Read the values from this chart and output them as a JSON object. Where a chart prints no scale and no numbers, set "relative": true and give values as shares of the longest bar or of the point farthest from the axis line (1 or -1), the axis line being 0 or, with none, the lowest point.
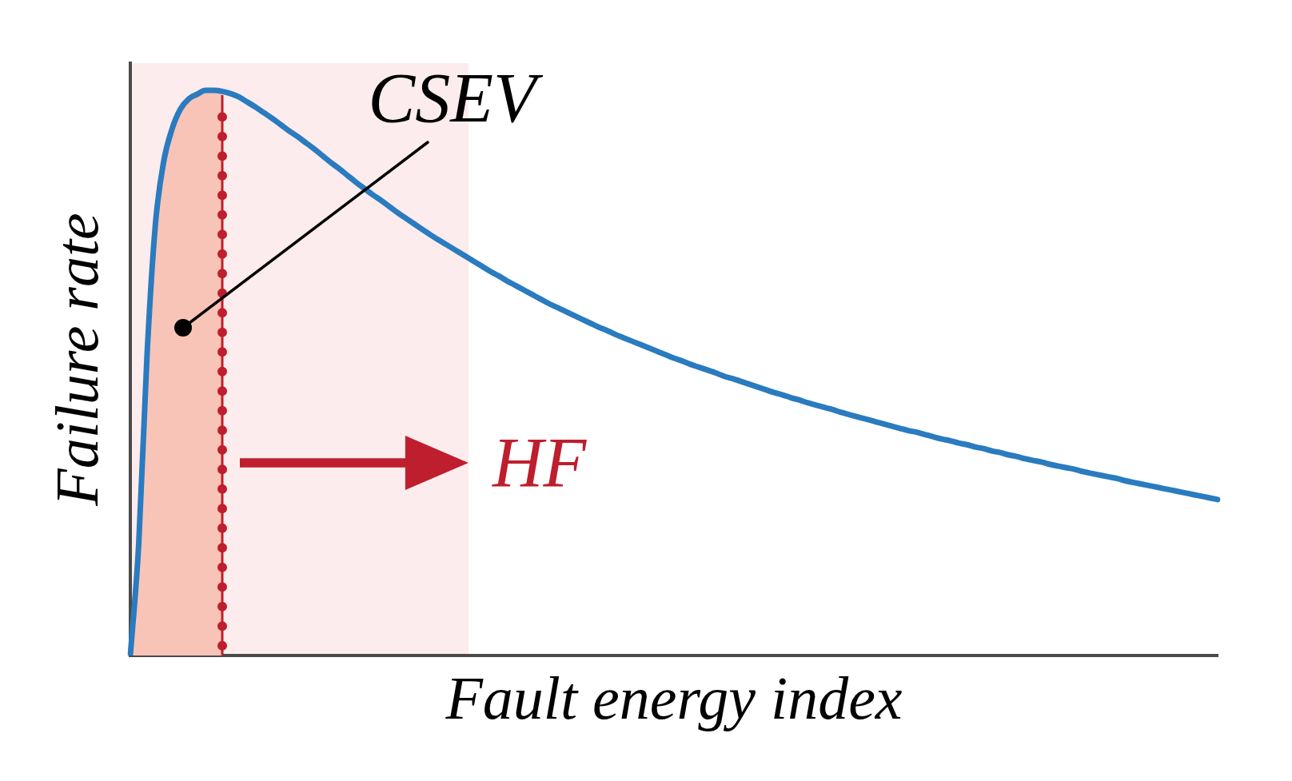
{
  "chart_data": {
    "type": "line",
    "relative": true,
    "xlabel": "Fault energy index",
    "ylabel": "Failure rate",
    "annotations": [
      "HF"
    ],
    "categories": [
      null,
      null,
      null,
      null,
      null,
      null,
      null,
      null,
      null,
      null,
      null,
      null,
      null,
      null,
      null,
      null,
      null,
      null,
      null,
      null,
      null,
      null,
      null,
      null,
      null,
      null,
      null,
      null,
      null,
      null,
      null,
      null,
      null,
      null,
      null,
      null,
      null,
      null,
      null,
      null,
      null,
      null,
      null,
      null,
      null,
      null,
      null,
      null,
      null,
      null,
      null,
      null,
      null,
      null,
      null,
      null,
      null,
      null,
      null,
      null,
      null,
      null,
      null,
      null,
      null,
      null,
      null,
      null,
      null,
      null,
      null,
      null,
      null,
      null,
      null,
      null,
      null,
      null,
      null,
      null,
      null,
      null,
      null,
      null,
      null,
      null,
      null,
      null,
      null,
      null,
      null,
      null,
      null,
      null,
      null,
      null,
      null,
      null,
      null,
      null,
      null,
      null,
      null,
      null,
      null,
      null,
      null,
      null,
      null,
      null,
      null,
      null,
      null,
      null,
      null,
      null,
      null,
      null,
      null,
      null,
      null,
      null,
      null,
      null,
      null,
      null,
      null,
      null,
      null,
      null,
      null
    ],
    "series": [
      {
        "color": "#2a7bbf",
        "values": [
          0,
          0.196,
          0.532,
          0.763,
          0.875,
          0.932,
          0.967,
          0.985,
          0.993,
          1,
          1,
          0.998,
          0.994,
          0.988,
          0.979,
          0.97,
          0.96,
          0.95,
          0.939,
          0.928,
          0.918,
          0.907,
          0.896,
          0.884,
          0.872,
          0.861,
          0.849,
          0.837,
          0.826,
          0.815,
          0.805,
          0.794,
          0.783,
          0.773,
          0.763,
          0.753,
          0.743,
          0.734,
          0.725,
          0.716,
          0.707,
          0.698,
          0.689,
          0.68,
          0.672,
          0.663,
          0.655,
          0.647,
          0.639,
          0.631,
          0.623,
          0.616,
          0.609,
          0.602,
          0.595,
          0.588,
          0.581,
          0.575,
          0.568,
          0.562,
          0.556,
          0.55,
          0.544,
          0.538,
          0.532,
          0.526,
          0.521,
          0.515,
          0.51,
          0.505,
          0.5,
          0.494,
          0.49,
          0.485,
          0.48,
          0.475,
          0.47,
          0.465,
          0.461,
          0.456,
          0.452,
          0.447,
          0.443,
          0.439,
          0.435,
          0.43,
          0.426,
          0.422,
          0.418,
          0.414,
          0.41,
          0.406,
          0.402,
          0.398,
          0.395,
          0.391,
          0.387,
          0.383,
          0.38,
          0.376,
          0.373,
          0.369,
          0.366,
          0.362,
          0.359,
          0.355,
          0.352,
          0.348,
          0.345,
          0.342,
          0.338,
          0.335,
          0.332,
          0.329,
          0.325,
          0.322,
          0.319,
          0.316,
          0.313,
          0.309,
          0.306,
          0.303,
          0.3,
          0.297,
          0.294,
          0.291,
          0.288,
          0.285,
          0.282,
          0.279,
          0.276
        ]
      },
      {
        "type": "area",
        "name": "CSEV",
        "color": "#f9c4b8",
        "values": [
          0,
          0.196,
          0.532,
          0.763,
          0.875,
          0.932,
          0.967,
          0.985,
          0.993,
          1,
          1,
          0.998,
          null,
          null,
          null,
          null,
          null,
          null,
          null,
          null,
          null,
          null,
          null,
          null,
          null,
          null,
          null,
          null,
          null,
          null,
          null,
          null,
          null,
          null,
          null,
          null,
          null,
          null,
          null,
          null,
          null,
          null,
          null,
          null,
          null,
          null,
          null,
          null,
          null,
          null,
          null,
          null,
          null,
          null,
          null,
          null,
          null,
          null,
          null,
          null,
          null,
          null,
          null,
          null,
          null,
          null,
          null,
          null,
          null,
          null,
          null,
          null,
          null,
          null,
          null,
          null,
          null,
          null,
          null,
          null,
          null,
          null,
          null,
          null,
          null,
          null,
          null,
          null,
          null,
          null,
          null,
          null,
          null,
          null,
          null,
          null,
          null,
          null,
          null,
          null,
          null,
          null,
          null,
          null,
          null,
          null,
          null,
          null,
          null,
          null,
          null,
          null,
          null,
          null,
          null,
          null,
          null,
          null,
          null,
          null,
          null,
          null,
          null,
          null,
          null,
          null,
          null,
          null,
          null,
          null,
          null
        ]
      }
    ]
  }
}
